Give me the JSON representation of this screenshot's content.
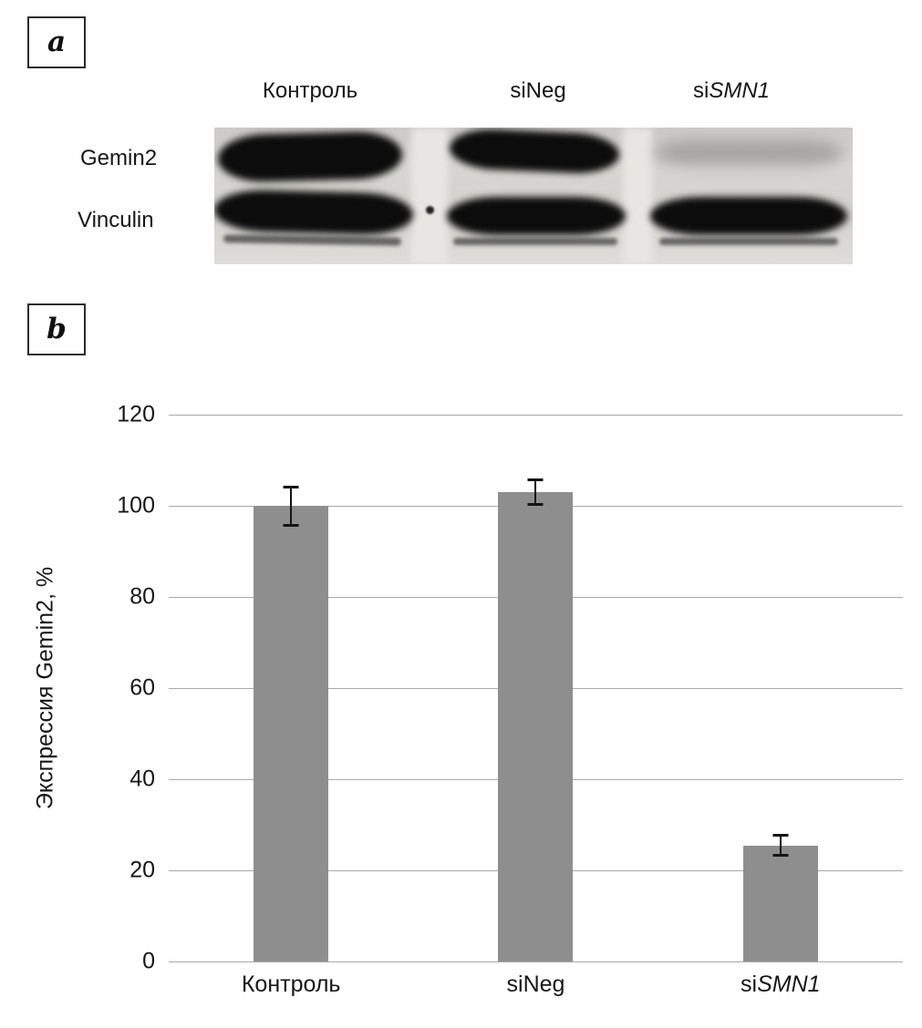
{
  "figure": {
    "panel_a": {
      "label": "a",
      "lane_labels": [
        "Контроль",
        "siNeg",
        "siSMN1"
      ],
      "lane_labels_rich": [
        [
          {
            "text": "Контроль",
            "italic": false
          }
        ],
        [
          {
            "text": "siNeg",
            "italic": false
          }
        ],
        [
          {
            "text": "si",
            "italic": false
          },
          {
            "text": "SMN1",
            "italic": true
          }
        ]
      ],
      "row_labels": [
        "Gemin2",
        "Vinculin"
      ],
      "blot": {
        "rows": [
          {
            "protein": "Gemin2",
            "lane_band_intensity": [
              "strong",
              "strong",
              "faint"
            ]
          },
          {
            "protein": "Vinculin",
            "lane_band_intensity": [
              "strong",
              "strong",
              "strong"
            ]
          }
        ]
      }
    },
    "panel_b": {
      "label": "b"
    }
  },
  "chart_data": {
    "type": "bar",
    "title": "",
    "xlabel": "",
    "ylabel": "Экспрессия Gemin2, %",
    "ylim": [
      0,
      120
    ],
    "yticks": [
      0,
      20,
      40,
      60,
      80,
      100,
      120
    ],
    "grid": true,
    "legend_position": "none",
    "bar_color": "#8e8e8e",
    "error_color": "#141414",
    "categories": [
      "Контроль",
      "siNeg",
      "siSMN1"
    ],
    "categories_rich": [
      [
        {
          "text": "Контроль",
          "italic": false
        }
      ],
      [
        {
          "text": "siNeg",
          "italic": false
        }
      ],
      [
        {
          "text": "si",
          "italic": false
        },
        {
          "text": "SMN1",
          "italic": true
        }
      ]
    ],
    "values": [
      100,
      103,
      25.5
    ],
    "errors": [
      4.5,
      3,
      2.5
    ]
  }
}
